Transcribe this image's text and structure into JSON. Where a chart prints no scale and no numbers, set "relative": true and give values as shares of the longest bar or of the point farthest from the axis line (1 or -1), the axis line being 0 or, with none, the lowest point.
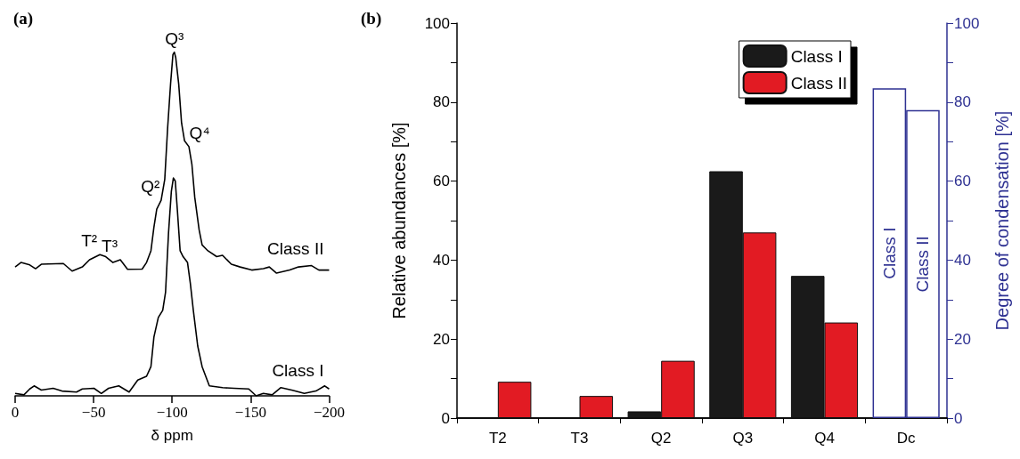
{
  "chart_data": [
    {
      "type": "line",
      "title": "(a)",
      "xlabel": "δ ppm",
      "relative": true,
      "xlim": [
        0,
        -200
      ],
      "xticks": [
        0,
        {
          "value": -50,
          "label": "−50"
        },
        {
          "value": -100,
          "label": "−100"
        },
        {
          "value": -150,
          "label": "−150"
        },
        {
          "value": -200,
          "label": "−200"
        }
      ],
      "annotations": [
        {
          "text": "Q³",
          "x": -101.4,
          "y": 1
        },
        {
          "text": "Q⁴",
          "x": -110.7,
          "y": 0.725
        },
        {
          "text": "Q²",
          "x": -93,
          "y": 0.569
        },
        {
          "text": "T²",
          "x": -54,
          "y": 0.411
        },
        {
          "text": "T³",
          "x": -67,
          "y": 0.396
        }
      ],
      "series": [
        {
          "name": "Class II",
          "color": "#000000",
          "x": [
            0,
            -3.7,
            -9.3,
            -13,
            -16.7,
            -30.7,
            -36.3,
            -42.8,
            -47.4,
            -54,
            -57.7,
            -62.3,
            -67,
            -71.6,
            -80.9,
            -83.7,
            -86.5,
            -88.4,
            -90.2,
            -93,
            -95.3,
            -97.1,
            -99,
            -100.5,
            -101.4,
            -102.3,
            -104.2,
            -106,
            -107.9,
            -110.7,
            -112.6,
            -114.4,
            -117.2,
            -119.1,
            -122.8,
            -128.4,
            -132.1,
            -137.7,
            -143.3,
            -150.7,
            -158.1,
            -161.9,
            -166.5,
            -174.9,
            -180.5,
            -188.8,
            -193.5,
            -200
          ],
          "values": [
            0.375,
            0.388,
            0.381,
            0.37,
            0.383,
            0.385,
            0.363,
            0.375,
            0.396,
            0.411,
            0.405,
            0.388,
            0.396,
            0.368,
            0.369,
            0.388,
            0.422,
            0.491,
            0.543,
            0.569,
            0.63,
            0.777,
            0.907,
            0.993,
            1,
            0.984,
            0.907,
            0.794,
            0.742,
            0.725,
            0.673,
            0.578,
            0.483,
            0.439,
            0.422,
            0.405,
            0.409,
            0.383,
            0.375,
            0.366,
            0.37,
            0.375,
            0.357,
            0.366,
            0.375,
            0.379,
            0.366,
            0.366
          ]
        },
        {
          "name": "Class I",
          "color": "#000000",
          "x": [
            0,
            -5.6,
            -9.3,
            -12.1,
            -16.7,
            -24.2,
            -29.8,
            -39.1,
            -42.8,
            -50.2,
            -54.9,
            -59.5,
            -66,
            -72.6,
            -78.1,
            -83.7,
            -86.5,
            -88.4,
            -91.2,
            -94,
            -95.8,
            -97.7,
            -99.5,
            -100.8,
            -102,
            -103.3,
            -105.1,
            -107,
            -109.8,
            -111.6,
            -113.5,
            -116.3,
            -119.1,
            -123.7,
            -132.1,
            -139.5,
            -148.8,
            -153.5,
            -158.1,
            -163.7,
            -169.3,
            -176.7,
            -184.2,
            -191.6,
            -197.2,
            -200
          ],
          "values": [
            0.007,
            0.003,
            0.02,
            0.029,
            0.017,
            0.022,
            0.014,
            0.011,
            0.02,
            0.022,
            0.007,
            0.022,
            0.029,
            0.011,
            0.046,
            0.057,
            0.085,
            0.171,
            0.228,
            0.249,
            0.301,
            0.474,
            0.595,
            0.634,
            0.625,
            0.543,
            0.422,
            0.405,
            0.388,
            0.327,
            0.249,
            0.145,
            0.085,
            0.029,
            0.024,
            0.022,
            0.02,
            0,
            0.007,
            0.003,
            0.024,
            0.016,
            0.007,
            0.014,
            0.029,
            0.02
          ]
        }
      ]
    },
    {
      "type": "bar",
      "title": "(b)",
      "ylabel": "Relative abundances [%]",
      "y2label": "Degree of condensation [%]",
      "categories": [
        "T2",
        "T3",
        "Q2",
        "Q3",
        "Q4",
        "Dc"
      ],
      "legend": "top right",
      "ylim": [
        0,
        100
      ],
      "yticks": [
        0,
        {
          "value": 10,
          "label": null
        },
        20,
        {
          "value": 30,
          "label": null
        },
        40,
        {
          "value": 50,
          "label": null
        },
        60,
        {
          "value": 70,
          "label": null
        },
        80,
        {
          "value": 90,
          "label": null
        },
        100
      ],
      "y2lim": [
        0,
        100
      ],
      "y2ticks": [
        0,
        {
          "value": 10,
          "label": null
        },
        20,
        {
          "value": 30,
          "label": null
        },
        40,
        {
          "value": 50,
          "label": null
        },
        60,
        {
          "value": 70,
          "label": null
        },
        80,
        {
          "value": 90,
          "label": null
        },
        100
      ],
      "series": [
        {
          "name": "Class I",
          "color": "#1a1a1a",
          "values": [
            null,
            null,
            1.7,
            62.5,
            36,
            null
          ]
        },
        {
          "name": "Class II",
          "color": "#e21b23",
          "values": [
            9.2,
            5.6,
            14.5,
            47,
            24.2,
            null
          ]
        },
        {
          "name": "Class I",
          "color": "#2e3192",
          "axis": "y2",
          "values": [
            null,
            null,
            null,
            null,
            null,
            83.5
          ]
        },
        {
          "name": "Class II",
          "color": "#2e3192",
          "axis": "y2",
          "values": [
            null,
            null,
            null,
            null,
            null,
            78
          ]
        }
      ]
    }
  ]
}
